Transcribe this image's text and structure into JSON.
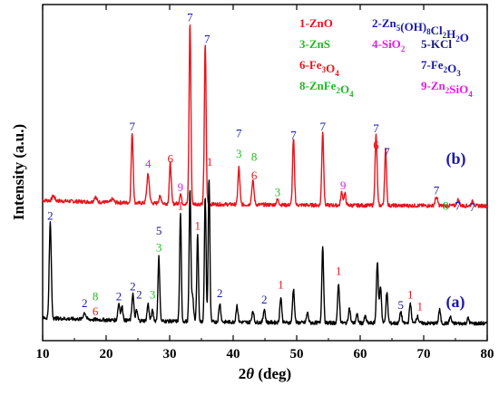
{
  "chart_data": {
    "type": "line",
    "xlabel_prefix": "2",
    "xlabel_theta": "θ",
    "xlabel_suffix": " (deg)",
    "ylabel": "Intensity (a.u.)",
    "xlim": [
      10,
      80
    ],
    "xticks": [
      "10",
      "20",
      "30",
      "40",
      "50",
      "60",
      "70",
      "80"
    ],
    "grid": false,
    "legend": [
      {
        "text": "1-ZnO",
        "color": "#e8141c"
      },
      {
        "text": "2-Zn5(OH)8Cl2H2O",
        "color": "#1a1aa6"
      },
      {
        "text": "3-ZnS",
        "color": "#22bb22"
      },
      {
        "text": "4-SiO2",
        "color": "#e01ee0"
      },
      {
        "text": "5-KCl",
        "color": "#1a1a7a"
      },
      {
        "text": "6-Fe3O4",
        "color": "#e8141c"
      },
      {
        "text": "7-Fe2O3",
        "color": "#1a1aa6"
      },
      {
        "text": "8-ZnFe2O4",
        "color": "#22bb22"
      },
      {
        "text": "9-Zn2SiO4",
        "color": "#e01ee0"
      }
    ],
    "series": [
      {
        "name": "(b)",
        "color": "#e8141c",
        "baseline": 8.0,
        "peaks": [
          [
            11.7,
            0.3,
            0.2
          ],
          [
            18.3,
            0.3,
            0.2
          ],
          [
            21.0,
            0.2,
            0.2
          ],
          [
            24.1,
            4.2,
            0.15
          ],
          [
            26.6,
            1.7,
            0.2
          ],
          [
            28.5,
            0.4,
            0.2
          ],
          [
            30.1,
            2.4,
            0.15
          ],
          [
            31.7,
            0.6,
            0.15
          ],
          [
            33.2,
            10.8,
            0.14
          ],
          [
            35.6,
            9.5,
            0.14
          ],
          [
            40.9,
            2.2,
            0.15
          ],
          [
            43.1,
            1.4,
            0.18
          ],
          [
            47.0,
            0.3,
            0.2
          ],
          [
            49.5,
            3.9,
            0.15
          ],
          [
            54.1,
            4.4,
            0.15
          ],
          [
            57.1,
            0.8,
            0.15
          ],
          [
            57.6,
            0.7,
            0.15
          ],
          [
            62.5,
            4.2,
            0.16
          ],
          [
            64.0,
            3.3,
            0.15
          ],
          [
            72.0,
            0.5,
            0.2
          ],
          [
            75.4,
            0.35,
            0.2
          ],
          [
            77.7,
            0.25,
            0.2
          ]
        ]
      },
      {
        "name": "(a)",
        "color": "#000000",
        "baseline": 1.0,
        "peaks": [
          [
            11.2,
            5.7,
            0.16
          ],
          [
            16.6,
            0.4,
            0.2
          ],
          [
            22.0,
            1.0,
            0.16
          ],
          [
            22.5,
            0.8,
            0.15
          ],
          [
            24.2,
            1.6,
            0.15
          ],
          [
            24.8,
            0.6,
            0.15
          ],
          [
            26.6,
            1.0,
            0.15
          ],
          [
            27.3,
            0.6,
            0.15
          ],
          [
            28.3,
            3.8,
            0.14
          ],
          [
            31.7,
            6.4,
            0.13
          ],
          [
            33.2,
            7.9,
            0.13
          ],
          [
            33.6,
            1.6,
            0.15
          ],
          [
            34.4,
            5.2,
            0.13
          ],
          [
            35.6,
            7.5,
            0.13
          ],
          [
            36.2,
            8.6,
            0.13
          ],
          [
            37.9,
            1.1,
            0.15
          ],
          [
            40.6,
            1.0,
            0.15
          ],
          [
            43.1,
            0.7,
            0.15
          ],
          [
            44.9,
            0.8,
            0.15
          ],
          [
            47.5,
            1.5,
            0.15
          ],
          [
            49.5,
            2.0,
            0.15
          ],
          [
            51.7,
            0.6,
            0.15
          ],
          [
            54.1,
            4.6,
            0.14
          ],
          [
            56.6,
            2.3,
            0.15
          ],
          [
            58.3,
            0.9,
            0.15
          ],
          [
            59.5,
            0.5,
            0.15
          ],
          [
            60.8,
            0.4,
            0.15
          ],
          [
            62.7,
            3.6,
            0.15
          ],
          [
            63.2,
            2.2,
            0.15
          ],
          [
            64.2,
            1.8,
            0.15
          ],
          [
            66.4,
            0.7,
            0.15
          ],
          [
            67.9,
            1.2,
            0.15
          ],
          [
            69.0,
            0.4,
            0.2
          ],
          [
            72.5,
            0.8,
            0.15
          ],
          [
            74.2,
            0.4,
            0.15
          ],
          [
            77.0,
            0.3,
            0.15
          ]
        ]
      }
    ],
    "peak_labels": [
      {
        "text": "7",
        "x": 24.1,
        "y": 12.5,
        "color": "#1a1aa6"
      },
      {
        "text": "4",
        "x": 26.6,
        "y": 10.3,
        "color": "#e01ee0"
      },
      {
        "text": "6",
        "x": 30.1,
        "y": 10.6,
        "color": "#e8141c"
      },
      {
        "text": "9",
        "x": 31.7,
        "y": 8.9,
        "color": "#e01ee0"
      },
      {
        "text": "7",
        "x": 33.2,
        "y": 19.0,
        "color": "#1a1aa6"
      },
      {
        "text": "7",
        "x": 35.9,
        "y": 17.7,
        "color": "#1a1aa6"
      },
      {
        "text": "7",
        "x": 40.9,
        "y": 12.1,
        "color": "#1a1aa6"
      },
      {
        "text": "3",
        "x": 40.9,
        "y": 10.9,
        "color": "#22bb22"
      },
      {
        "text": "8",
        "x": 43.3,
        "y": 10.7,
        "color": "#22bb22"
      },
      {
        "text": "6",
        "x": 43.3,
        "y": 9.6,
        "color": "#e8141c"
      },
      {
        "text": "3",
        "x": 47.0,
        "y": 8.6,
        "color": "#22bb22"
      },
      {
        "text": "7",
        "x": 49.5,
        "y": 12.0,
        "color": "#1a1aa6"
      },
      {
        "text": "7",
        "x": 54.1,
        "y": 12.5,
        "color": "#1a1aa6"
      },
      {
        "text": "9",
        "x": 57.3,
        "y": 9.0,
        "color": "#e01ee0"
      },
      {
        "text": "7",
        "x": 62.5,
        "y": 12.4,
        "color": "#1a1aa6"
      },
      {
        "text": "6",
        "x": 62.5,
        "y": 11.4,
        "color": "#e8141c"
      },
      {
        "text": "7",
        "x": 64.2,
        "y": 11.0,
        "color": "#1a1aa6"
      },
      {
        "text": "7",
        "x": 72.0,
        "y": 8.7,
        "color": "#1a1aa6"
      },
      {
        "text": "8",
        "x": 73.5,
        "y": 7.8,
        "color": "#22bb22"
      },
      {
        "text": "7",
        "x": 75.4,
        "y": 7.8,
        "color": "#1a1aa6"
      },
      {
        "text": "7",
        "x": 77.7,
        "y": 7.7,
        "color": "#1a1aa6"
      },
      {
        "text": "2",
        "x": 11.2,
        "y": 7.2,
        "color": "#1a1aa6"
      },
      {
        "text": "8",
        "x": 18.3,
        "y": 2.4,
        "color": "#22bb22"
      },
      {
        "text": "6",
        "x": 18.3,
        "y": 1.5,
        "color": "#e8141c"
      },
      {
        "text": "2",
        "x": 16.6,
        "y": 2.0,
        "color": "#1a1aa6"
      },
      {
        "text": "2",
        "x": 22.0,
        "y": 2.4,
        "color": "#1a1aa6"
      },
      {
        "text": "2",
        "x": 24.2,
        "y": 3.0,
        "color": "#1a1aa6"
      },
      {
        "text": "2",
        "x": 25.2,
        "y": 2.5,
        "color": "#1a1aa6"
      },
      {
        "text": "3",
        "x": 27.3,
        "y": 2.5,
        "color": "#22bb22"
      },
      {
        "text": "5",
        "x": 28.3,
        "y": 6.3,
        "color": "#1a1a7a"
      },
      {
        "text": "3",
        "x": 28.3,
        "y": 5.3,
        "color": "#22bb22"
      },
      {
        "text": "1",
        "x": 31.7,
        "y": 7.8,
        "color": "#e8141c"
      },
      {
        "text": "1",
        "x": 34.4,
        "y": 6.6,
        "color": "#e8141c"
      },
      {
        "text": "1",
        "x": 36.3,
        "y": 10.4,
        "color": "#e8141c"
      },
      {
        "text": "2",
        "x": 37.9,
        "y": 2.6,
        "color": "#1a1aa6"
      },
      {
        "text": "2",
        "x": 44.9,
        "y": 2.2,
        "color": "#1a1aa6"
      },
      {
        "text": "1",
        "x": 47.5,
        "y": 3.1,
        "color": "#e8141c"
      },
      {
        "text": "1",
        "x": 56.6,
        "y": 3.9,
        "color": "#e8141c"
      },
      {
        "text": "5",
        "x": 66.4,
        "y": 1.9,
        "color": "#1a1a7a"
      },
      {
        "text": "1",
        "x": 67.9,
        "y": 2.5,
        "color": "#e8141c"
      },
      {
        "text": "1",
        "x": 69.4,
        "y": 1.8,
        "color": "#e8141c"
      }
    ],
    "sample_labels": [
      {
        "text": "(b)",
        "x": 73.5,
        "y": 10.5
      },
      {
        "text": "(a)",
        "x": 73.5,
        "y": 2.0
      }
    ]
  }
}
